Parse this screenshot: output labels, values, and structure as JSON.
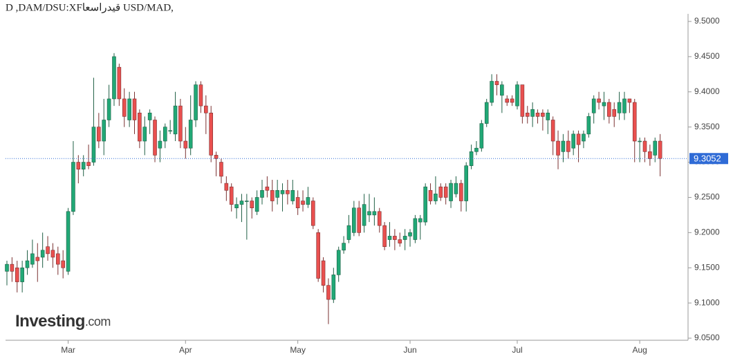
{
  "chart_data": {
    "type": "candlestick",
    "title": "D ,DAM/DSU:XFقيدراسعا USD/MAD,",
    "brand": {
      "name": "Investing",
      "suffix": ".com"
    },
    "up_color": "#21a876",
    "down_color": "#e9504f",
    "last_price": 9.3052,
    "last_price_color": "#2f6bd6",
    "ylim": [
      9.05,
      9.5
    ],
    "yticks": [
      {
        "value": 9.5,
        "label": "9.5000"
      },
      {
        "value": 9.45,
        "label": "9.4500"
      },
      {
        "value": 9.4,
        "label": "9.4000"
      },
      {
        "value": 9.35,
        "label": "9.3500"
      },
      {
        "value": 9.3,
        "label": "9.3000"
      },
      {
        "value": 9.25,
        "label": "9.2500"
      },
      {
        "value": 9.2,
        "label": "9.2000"
      },
      {
        "value": 9.15,
        "label": "9.1500"
      },
      {
        "value": 9.1,
        "label": "9.1000"
      },
      {
        "value": 9.05,
        "label": "9.0500"
      }
    ],
    "categories": [
      null,
      null,
      null,
      null,
      null,
      null,
      null,
      null,
      null,
      null,
      null,
      null,
      "Mar",
      null,
      null,
      null,
      null,
      null,
      null,
      null,
      null,
      null,
      null,
      null,
      null,
      null,
      null,
      null,
      null,
      null,
      null,
      null,
      null,
      null,
      null,
      "Apr",
      null,
      null,
      null,
      null,
      null,
      null,
      null,
      null,
      null,
      null,
      null,
      null,
      null,
      null,
      null,
      null,
      null,
      null,
      null,
      null,
      null,
      "May",
      null,
      null,
      null,
      null,
      null,
      null,
      null,
      null,
      null,
      null,
      null,
      null,
      null,
      null,
      null,
      null,
      null,
      null,
      null,
      null,
      null,
      "Jun",
      null,
      null,
      null,
      null,
      null,
      null,
      null,
      null,
      null,
      null,
      null,
      null,
      null,
      null,
      null,
      null,
      null,
      null,
      null,
      null,
      "Jul",
      null,
      null,
      null,
      null,
      null,
      null,
      null,
      null,
      null,
      null,
      null,
      null,
      null,
      null,
      null,
      null,
      null,
      null,
      null,
      null,
      null,
      null,
      null,
      "Aug",
      null,
      null,
      null,
      null
    ],
    "candles": [
      [
        9.145,
        9.16,
        9.125,
        9.155
      ],
      [
        9.155,
        9.165,
        9.13,
        9.145
      ],
      [
        9.15,
        9.16,
        9.115,
        9.13
      ],
      [
        9.13,
        9.16,
        9.115,
        9.15
      ],
      [
        9.15,
        9.175,
        9.14,
        9.16
      ],
      [
        9.155,
        9.19,
        9.15,
        9.17
      ],
      [
        9.165,
        9.185,
        9.13,
        9.16
      ],
      [
        9.165,
        9.2,
        9.15,
        9.175
      ],
      [
        9.18,
        9.195,
        9.16,
        9.17
      ],
      [
        9.175,
        9.185,
        9.15,
        9.165
      ],
      [
        9.17,
        9.18,
        9.14,
        9.155
      ],
      [
        9.16,
        9.175,
        9.135,
        9.15
      ],
      [
        9.145,
        9.235,
        9.14,
        9.23
      ],
      [
        9.23,
        9.33,
        9.225,
        9.3
      ],
      [
        9.3,
        9.31,
        9.27,
        9.29
      ],
      [
        9.29,
        9.31,
        9.28,
        9.3
      ],
      [
        9.3,
        9.325,
        9.29,
        9.295
      ],
      [
        9.3,
        9.42,
        9.295,
        9.35
      ],
      [
        9.35,
        9.37,
        9.32,
        9.33
      ],
      [
        9.33,
        9.39,
        9.31,
        9.36
      ],
      [
        9.36,
        9.41,
        9.35,
        9.39
      ],
      [
        9.39,
        9.455,
        9.38,
        9.45
      ],
      [
        9.435,
        9.44,
        9.38,
        9.39
      ],
      [
        9.39,
        9.405,
        9.35,
        9.365
      ],
      [
        9.36,
        9.4,
        9.35,
        9.39
      ],
      [
        9.39,
        9.4,
        9.34,
        9.36
      ],
      [
        9.37,
        9.375,
        9.32,
        9.33
      ],
      [
        9.33,
        9.365,
        9.31,
        9.35
      ],
      [
        9.36,
        9.375,
        9.34,
        9.37
      ],
      [
        9.36,
        9.365,
        9.3,
        9.31
      ],
      [
        9.32,
        9.345,
        9.3,
        9.33
      ],
      [
        9.33,
        9.355,
        9.32,
        9.35
      ],
      [
        9.345,
        9.36,
        9.34,
        9.345
      ],
      [
        9.34,
        9.4,
        9.33,
        9.38
      ],
      [
        9.38,
        9.39,
        9.32,
        9.33
      ],
      [
        9.33,
        9.35,
        9.305,
        9.32
      ],
      [
        9.32,
        9.395,
        9.31,
        9.36
      ],
      [
        9.36,
        9.415,
        9.35,
        9.41
      ],
      [
        9.41,
        9.415,
        9.37,
        9.38
      ],
      [
        9.38,
        9.395,
        9.34,
        9.37
      ],
      [
        9.37,
        9.38,
        9.3,
        9.31
      ],
      [
        9.31,
        9.315,
        9.28,
        9.305
      ],
      [
        9.3,
        9.305,
        9.27,
        9.28
      ],
      [
        9.27,
        9.28,
        9.245,
        9.26
      ],
      [
        9.265,
        9.27,
        9.23,
        9.24
      ],
      [
        9.235,
        9.25,
        9.22,
        9.24
      ],
      [
        9.24,
        9.255,
        9.215,
        9.245
      ],
      [
        9.245,
        9.255,
        9.19,
        9.245
      ],
      [
        9.245,
        9.25,
        9.22,
        9.235
      ],
      [
        9.23,
        9.26,
        9.225,
        9.25
      ],
      [
        9.25,
        9.275,
        9.24,
        9.26
      ],
      [
        9.265,
        9.28,
        9.25,
        9.26
      ],
      [
        9.26,
        9.275,
        9.23,
        9.245
      ],
      [
        9.25,
        9.275,
        9.24,
        9.26
      ],
      [
        9.255,
        9.27,
        9.23,
        9.26
      ],
      [
        9.26,
        9.275,
        9.24,
        9.255
      ],
      [
        9.245,
        9.275,
        9.24,
        9.26
      ],
      [
        9.25,
        9.26,
        9.225,
        9.235
      ],
      [
        9.245,
        9.26,
        9.23,
        9.24
      ],
      [
        9.24,
        9.265,
        9.235,
        9.25
      ],
      [
        9.245,
        9.25,
        9.205,
        9.21
      ],
      [
        9.2,
        9.205,
        9.13,
        9.135
      ],
      [
        9.16,
        9.165,
        9.115,
        9.125
      ],
      [
        9.125,
        9.135,
        9.07,
        9.105
      ],
      [
        9.105,
        9.15,
        9.1,
        9.14
      ],
      [
        9.14,
        9.18,
        9.13,
        9.175
      ],
      [
        9.175,
        9.195,
        9.17,
        9.185
      ],
      [
        9.19,
        9.225,
        9.185,
        9.21
      ],
      [
        9.2,
        9.245,
        9.195,
        9.235
      ],
      [
        9.235,
        9.245,
        9.195,
        9.2
      ],
      [
        9.21,
        9.255,
        9.2,
        9.24
      ],
      [
        9.225,
        9.255,
        9.215,
        9.23
      ],
      [
        9.225,
        9.25,
        9.21,
        9.23
      ],
      [
        9.23,
        9.235,
        9.2,
        9.21
      ],
      [
        9.21,
        9.215,
        9.175,
        9.18
      ],
      [
        9.19,
        9.215,
        9.18,
        9.195
      ],
      [
        9.195,
        9.205,
        9.175,
        9.19
      ],
      [
        9.19,
        9.2,
        9.18,
        9.185
      ],
      [
        9.19,
        9.205,
        9.175,
        9.195
      ],
      [
        9.195,
        9.205,
        9.18,
        9.2
      ],
      [
        9.19,
        9.225,
        9.185,
        9.22
      ],
      [
        9.215,
        9.225,
        9.19,
        9.22
      ],
      [
        9.215,
        9.27,
        9.21,
        9.265
      ],
      [
        9.26,
        9.27,
        9.24,
        9.245
      ],
      [
        9.245,
        9.28,
        9.24,
        9.255
      ],
      [
        9.265,
        9.27,
        9.245,
        9.25
      ],
      [
        9.265,
        9.27,
        9.24,
        9.25
      ],
      [
        9.245,
        9.275,
        9.235,
        9.27
      ],
      [
        9.255,
        9.28,
        9.25,
        9.27
      ],
      [
        9.27,
        9.275,
        9.23,
        9.245
      ],
      [
        9.245,
        9.3,
        9.23,
        9.295
      ],
      [
        9.295,
        9.325,
        9.29,
        9.315
      ],
      [
        9.315,
        9.33,
        9.31,
        9.32
      ],
      [
        9.32,
        9.36,
        9.315,
        9.355
      ],
      [
        9.355,
        9.39,
        9.35,
        9.385
      ],
      [
        9.385,
        9.425,
        9.38,
        9.415
      ],
      [
        9.415,
        9.425,
        9.395,
        9.41
      ],
      [
        9.395,
        9.415,
        9.37,
        9.41
      ],
      [
        9.39,
        9.395,
        9.38,
        9.385
      ],
      [
        9.39,
        9.395,
        9.38,
        9.385
      ],
      [
        9.38,
        9.415,
        9.375,
        9.41
      ],
      [
        9.41,
        9.41,
        9.355,
        9.365
      ],
      [
        9.37,
        9.38,
        9.355,
        9.365
      ],
      [
        9.365,
        9.385,
        9.35,
        9.375
      ],
      [
        9.37,
        9.375,
        9.355,
        9.365
      ],
      [
        9.37,
        9.375,
        9.345,
        9.365
      ],
      [
        9.36,
        9.375,
        9.34,
        9.37
      ],
      [
        9.36,
        9.365,
        9.31,
        9.33
      ],
      [
        9.33,
        9.345,
        9.29,
        9.31
      ],
      [
        9.315,
        9.34,
        9.3,
        9.33
      ],
      [
        9.33,
        9.345,
        9.305,
        9.315
      ],
      [
        9.32,
        9.345,
        9.31,
        9.34
      ],
      [
        9.34,
        9.345,
        9.3,
        9.325
      ],
      [
        9.33,
        9.345,
        9.32,
        9.34
      ],
      [
        9.34,
        9.37,
        9.335,
        9.365
      ],
      [
        9.37,
        9.395,
        9.355,
        9.39
      ],
      [
        9.39,
        9.4,
        9.375,
        9.385
      ],
      [
        9.38,
        9.4,
        9.36,
        9.385
      ],
      [
        9.385,
        9.39,
        9.355,
        9.365
      ],
      [
        9.375,
        9.385,
        9.35,
        9.365
      ],
      [
        9.37,
        9.4,
        9.36,
        9.385
      ],
      [
        9.37,
        9.4,
        9.36,
        9.39
      ],
      [
        9.39,
        9.39,
        9.37,
        9.385
      ],
      [
        9.385,
        9.39,
        9.3,
        9.33
      ],
      [
        9.33,
        9.335,
        9.3,
        9.33
      ],
      [
        9.33,
        9.335,
        9.3,
        9.315
      ],
      [
        9.315,
        9.325,
        9.295,
        9.305
      ],
      [
        9.31,
        9.335,
        9.3,
        9.33
      ],
      [
        9.33,
        9.34,
        9.28,
        9.3052
      ]
    ]
  }
}
